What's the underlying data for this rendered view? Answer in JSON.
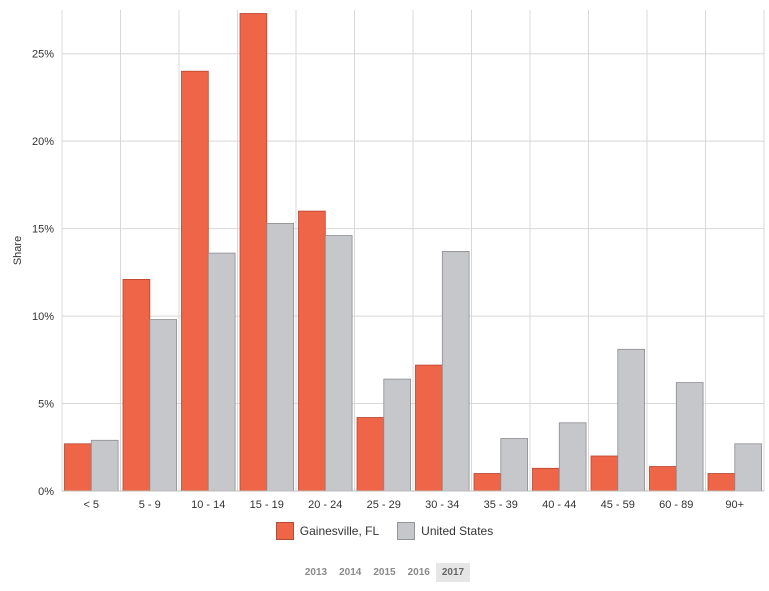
{
  "chart_data": {
    "type": "bar",
    "ylabel": "Share",
    "ylim": [
      0,
      27.5
    ],
    "yticks": [
      "0%",
      "5%",
      "10%",
      "15%",
      "20%",
      "25%"
    ],
    "ytick_values": [
      0,
      5,
      10,
      15,
      20,
      25
    ],
    "categories": [
      "< 5",
      "5 - 9",
      "10 - 14",
      "15 - 19",
      "20 - 24",
      "25 - 29",
      "30 - 34",
      "35 - 39",
      "40 - 44",
      "45 - 59",
      "60 - 89",
      "90+"
    ],
    "series": [
      {
        "name": "Gainesville, FL",
        "color": "#ef6548",
        "values": [
          2.7,
          12.1,
          24.0,
          27.3,
          16.0,
          4.2,
          7.2,
          1.0,
          1.3,
          2.0,
          1.4,
          1.0
        ]
      },
      {
        "name": "United States",
        "color": "#c6c7cb",
        "values": [
          2.9,
          9.8,
          13.6,
          15.3,
          14.6,
          6.4,
          13.7,
          3.0,
          3.9,
          8.1,
          6.2,
          2.7
        ]
      }
    ],
    "grid": true,
    "legend_position": "bottom"
  },
  "legend": {
    "items": [
      {
        "label": "Gainesville, FL",
        "color": "#ef6548"
      },
      {
        "label": "United States",
        "color": "#c6c7cb"
      }
    ]
  },
  "years": {
    "items": [
      "2013",
      "2014",
      "2015",
      "2016",
      "2017"
    ],
    "selected": "2017"
  }
}
